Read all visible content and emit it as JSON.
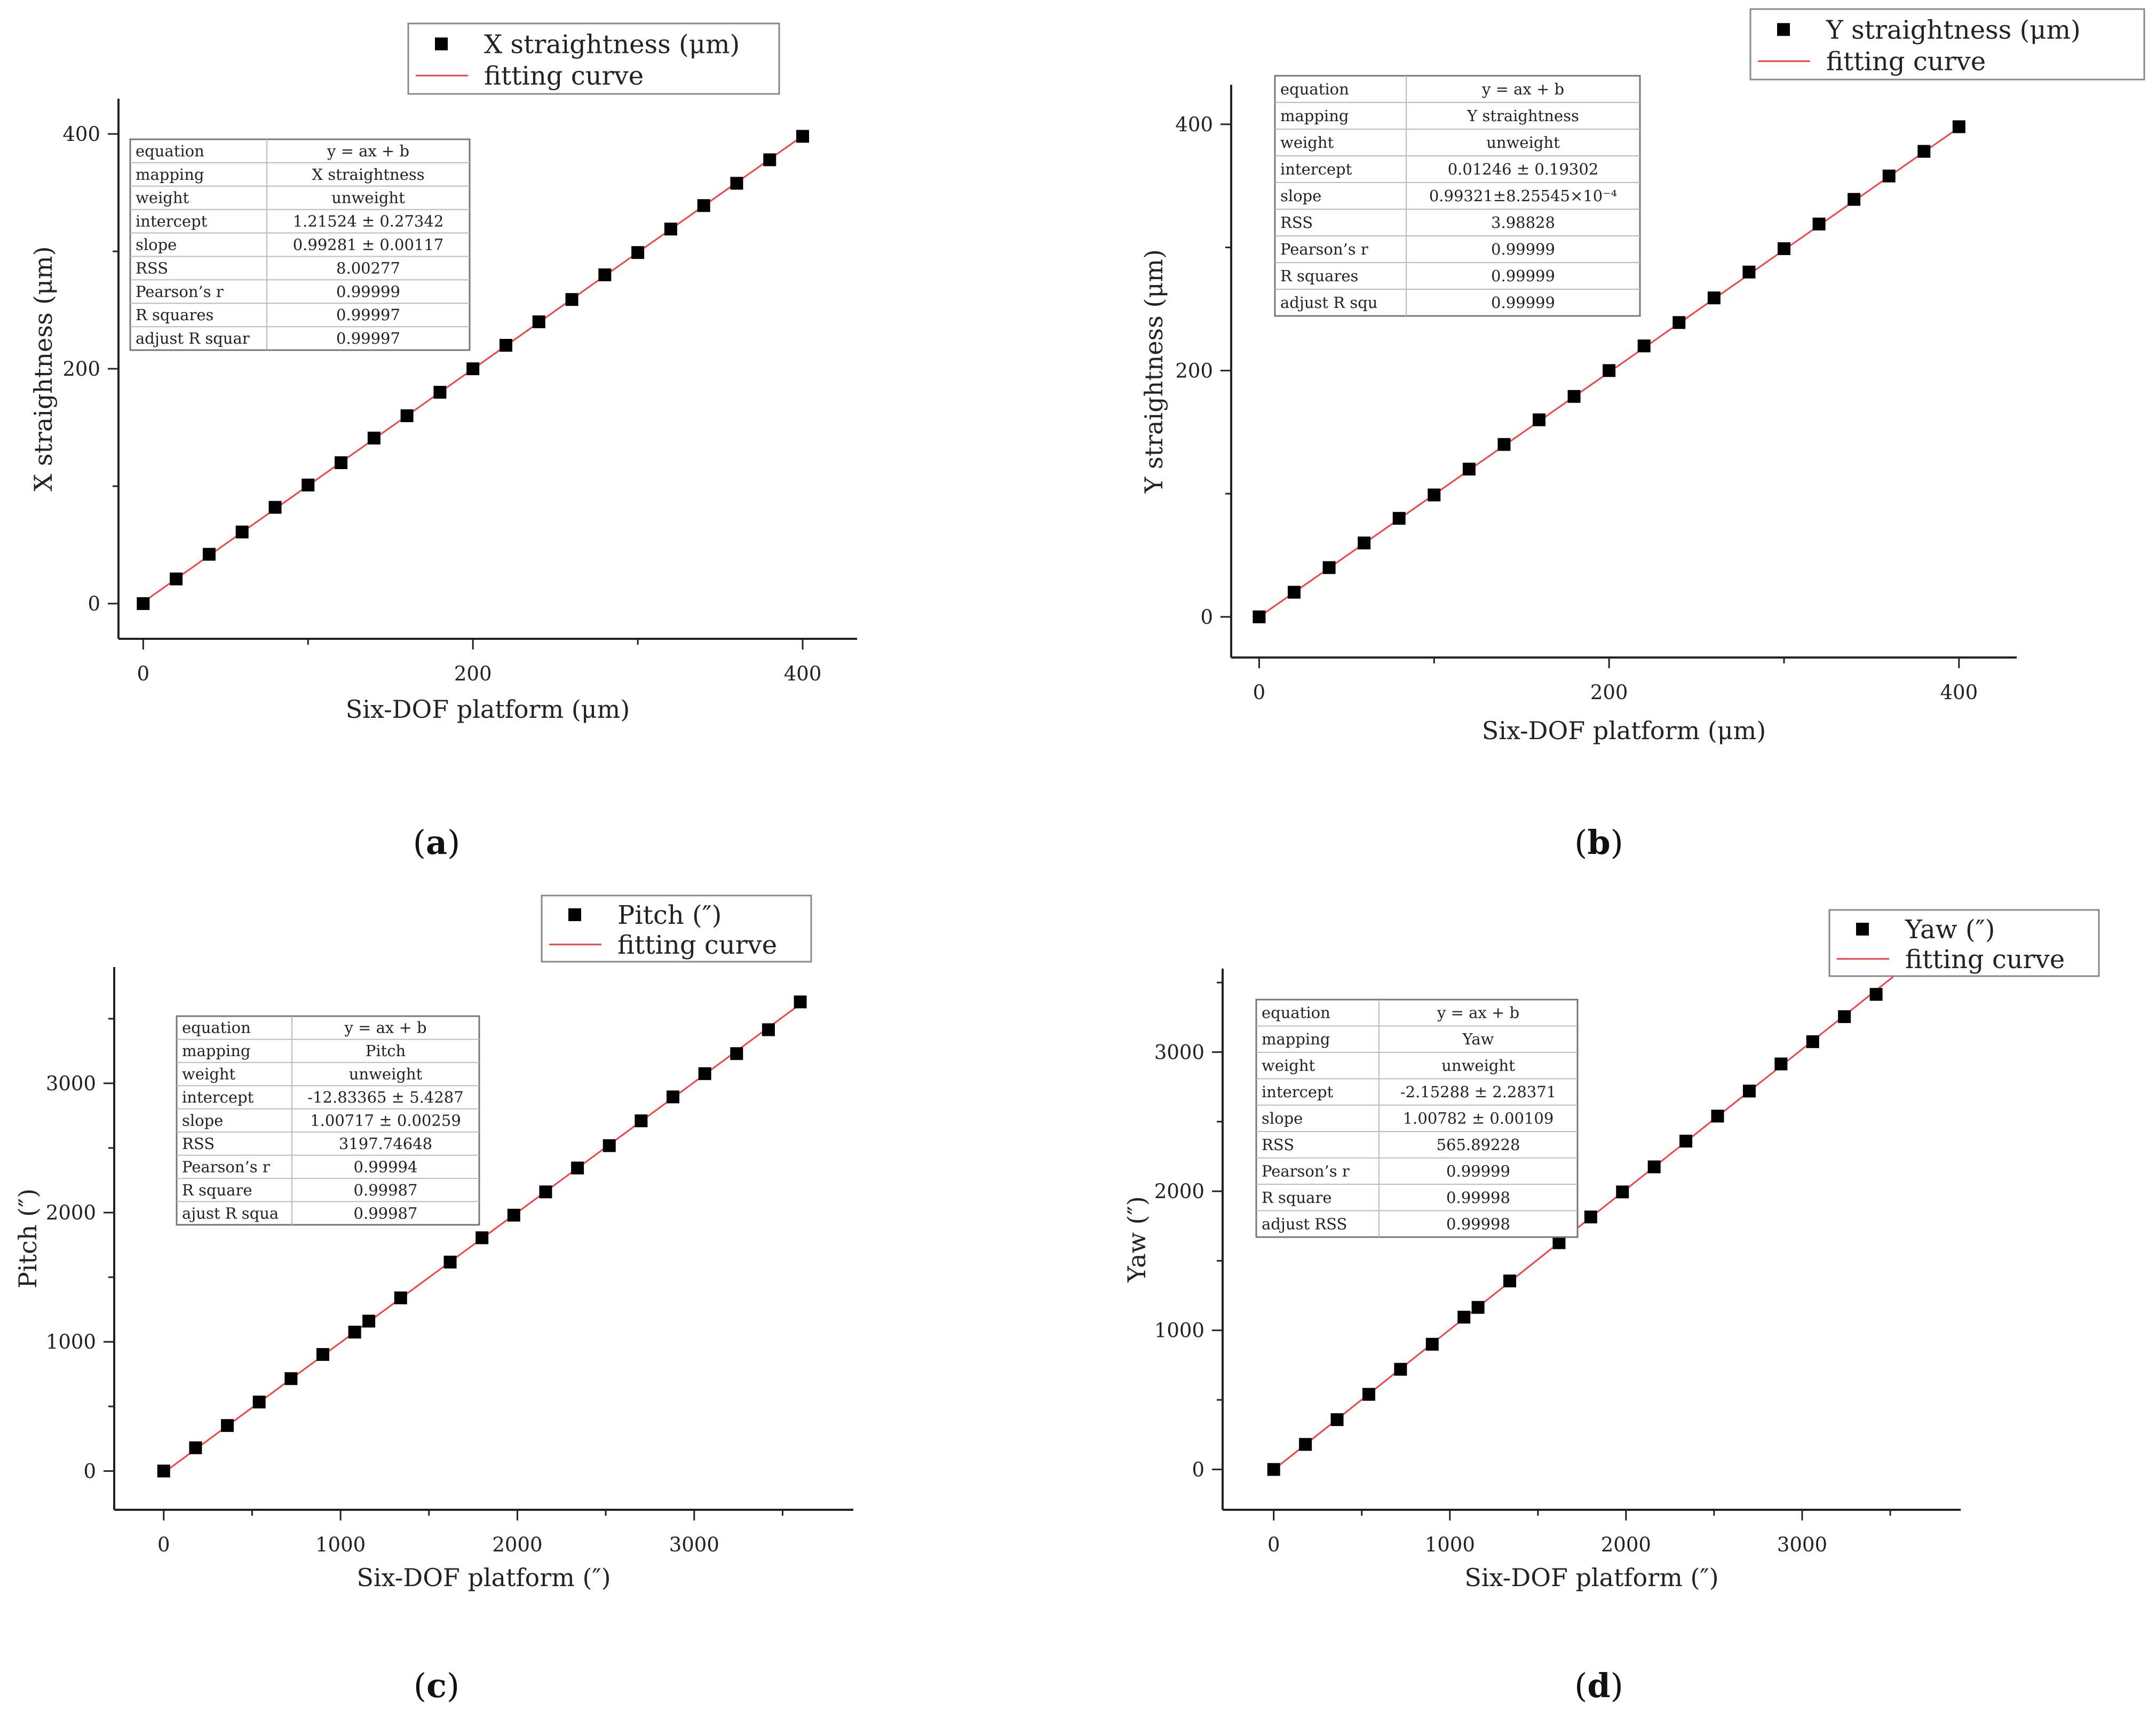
{
  "chart_data": [
    {
      "type": "scatter",
      "panel_label": "(a)",
      "panel_letter": "a",
      "xlabel": "Six-DOF platform (μm)",
      "ylabel": "X straightness (μm)",
      "xlim": [
        -15,
        433
      ],
      "ylim": [
        -30,
        430
      ],
      "xticks": [
        0,
        200,
        400
      ],
      "yticks": [
        0,
        200,
        400
      ],
      "series": [
        {
          "name": "X straightness (μm)",
          "kind": "points",
          "x": [
            0,
            20,
            40,
            60,
            80,
            100,
            120,
            140,
            160,
            180,
            200,
            220,
            240,
            260,
            280,
            300,
            320,
            340,
            360,
            380,
            400
          ],
          "y": [
            0,
            21,
            42,
            61,
            82,
            101,
            120,
            141,
            160,
            180,
            200,
            220,
            240,
            259,
            280,
            299,
            319,
            339,
            358,
            378,
            398
          ]
        },
        {
          "name": "fitting curve",
          "kind": "line",
          "intercept": 1.21524,
          "slope": 0.99281
        }
      ],
      "legend": {
        "position": "top",
        "entries": [
          "X straightness (μm)",
          "fitting curve"
        ]
      },
      "stats_table": [
        [
          "equation",
          "y = ax + b"
        ],
        [
          "mapping",
          "X straightness"
        ],
        [
          "weight",
          "unweight"
        ],
        [
          "intercept",
          "1.21524 ± 0.27342"
        ],
        [
          "slope",
          "0.99281 ± 0.00117"
        ],
        [
          "RSS",
          "8.00277"
        ],
        [
          "Pearson’s r",
          "0.99999"
        ],
        [
          "R squares",
          "0.99997"
        ],
        [
          "adjust R squar",
          "0.99997"
        ]
      ]
    },
    {
      "type": "scatter",
      "panel_label": "(b)",
      "panel_letter": "b",
      "xlabel": "Six-DOF platform (μm)",
      "ylabel": "Y straightness (μm)",
      "xlim": [
        -16,
        433
      ],
      "ylim": [
        -33,
        432
      ],
      "xticks": [
        0,
        200,
        400
      ],
      "yticks": [
        0,
        200,
        400
      ],
      "series": [
        {
          "name": "Y straightness (μm)",
          "kind": "points",
          "x": [
            0,
            20,
            40,
            60,
            80,
            100,
            120,
            140,
            160,
            180,
            200,
            220,
            240,
            260,
            280,
            300,
            320,
            340,
            360,
            380,
            400
          ],
          "y": [
            0,
            20,
            40,
            60,
            80,
            99,
            120,
            140,
            160,
            179,
            200,
            220,
            239,
            259,
            280,
            299,
            319,
            339,
            358,
            378,
            398
          ]
        },
        {
          "name": "fitting curve",
          "kind": "line",
          "intercept": 0.01246,
          "slope": 0.99321
        }
      ],
      "legend": {
        "position": "top-right",
        "entries": [
          "Y straightness (μm)",
          "fitting curve"
        ]
      },
      "stats_table": [
        [
          "equation",
          "y = ax + b"
        ],
        [
          "mapping",
          "Y straightness"
        ],
        [
          "weight",
          "unweight"
        ],
        [
          "intercept",
          "0.01246 ± 0.19302"
        ],
        [
          "slope",
          "0.99321±8.25545×10⁻⁴"
        ],
        [
          "RSS",
          "3.98828"
        ],
        [
          "Pearson’s r",
          "0.99999"
        ],
        [
          "R squares",
          "0.99999"
        ],
        [
          "adjust R squ",
          "0.99999"
        ]
      ]
    },
    {
      "type": "scatter",
      "panel_label": "(c)",
      "panel_letter": "c",
      "xlabel": "Six-DOF platform (″)",
      "ylabel": "Pitch (″)",
      "xlim": [
        -280,
        3900
      ],
      "ylim": [
        -300,
        3900
      ],
      "xticks": [
        0,
        1000,
        2000,
        3000
      ],
      "yticks": [
        0,
        1000,
        2000,
        3000
      ],
      "series": [
        {
          "name": "Pitch (″)",
          "kind": "points",
          "x": [
            0,
            180,
            360,
            540,
            720,
            900,
            1080,
            1160,
            1340,
            1620,
            1800,
            1980,
            2160,
            2340,
            2520,
            2700,
            2880,
            3060,
            3240,
            3420,
            3600
          ],
          "y": [
            0,
            180,
            352,
            534,
            715,
            902,
            1075,
            1160,
            1340,
            1617,
            1805,
            1980,
            2160,
            2345,
            2518,
            2710,
            2895,
            3075,
            3230,
            3415,
            3630
          ]
        },
        {
          "name": "fitting curve",
          "kind": "line",
          "intercept": -12.83365,
          "slope": 1.00717
        }
      ],
      "legend": {
        "position": "top-right",
        "entries": [
          "Pitch (″)",
          "fitting curve"
        ]
      },
      "stats_table": [
        [
          "equation",
          "y = ax + b"
        ],
        [
          "mapping",
          "Pitch"
        ],
        [
          "weight",
          "unweight"
        ],
        [
          "intercept",
          "-12.83365 ± 5.4287"
        ],
        [
          "slope",
          "1.00717 ± 0.00259"
        ],
        [
          "RSS",
          "3197.74648"
        ],
        [
          "Pearson’s r",
          "0.99994"
        ],
        [
          "R square",
          "0.99987"
        ],
        [
          "ajust R squa",
          "0.99987"
        ]
      ]
    },
    {
      "type": "scatter",
      "panel_label": "(d)",
      "panel_letter": "d",
      "xlabel": "Six-DOF platform (″)",
      "ylabel": "Yaw (″)",
      "xlim": [
        -290,
        3900
      ],
      "ylim": [
        -290,
        3600
      ],
      "xticks": [
        0,
        1000,
        2000,
        3000
      ],
      "yticks": [
        0,
        1000,
        2000,
        3000
      ],
      "series": [
        {
          "name": "Yaw (″)",
          "kind": "points",
          "x": [
            0,
            180,
            360,
            540,
            720,
            900,
            1080,
            1160,
            1340,
            1620,
            1800,
            1980,
            2160,
            2340,
            2520,
            2700,
            2880,
            3060,
            3240,
            3420,
            3600
          ],
          "y": [
            0,
            180,
            358,
            540,
            720,
            900,
            1095,
            1165,
            1355,
            1630,
            1815,
            1995,
            2175,
            2360,
            2540,
            2720,
            2915,
            3075,
            3255,
            3415,
            3605
          ]
        },
        {
          "name": "fitting curve",
          "kind": "line",
          "intercept": -2.15288,
          "slope": 1.00782
        }
      ],
      "legend": {
        "position": "top-right",
        "entries": [
          "Yaw (″)",
          "fitting curve"
        ]
      },
      "stats_table": [
        [
          "equation",
          "y = ax + b"
        ],
        [
          "mapping",
          "Yaw"
        ],
        [
          "weight",
          "unweight"
        ],
        [
          "intercept",
          "-2.15288 ± 2.28371"
        ],
        [
          "slope",
          "1.00782 ± 0.00109"
        ],
        [
          "RSS",
          "565.89228"
        ],
        [
          "Pearson’s r",
          "0.99999"
        ],
        [
          "R square",
          "0.99998"
        ],
        [
          "adjust RSS",
          "0.99998"
        ]
      ]
    }
  ],
  "colors": {
    "axis": "#222222",
    "marker": "#000000",
    "fit_line": "#ee4444",
    "legend_border": "#888888",
    "table_border": "#777777",
    "table_grid": "#bbbbbb"
  }
}
